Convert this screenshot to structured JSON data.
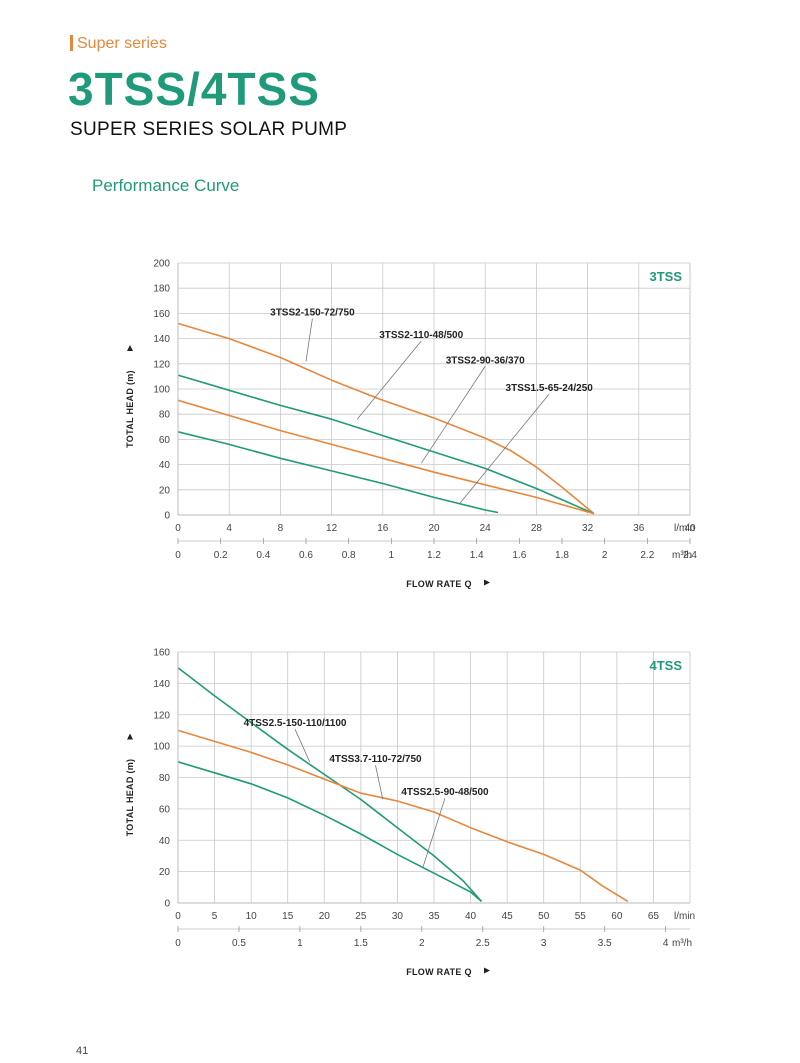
{
  "header": {
    "series_label": "Super series",
    "model_title": "3TSS/4TSS",
    "subtitle": "SUPER SERIES SOLAR PUMP",
    "section_title": "Performance Curve"
  },
  "page_number": "41",
  "colors": {
    "green": "#1f9a7a",
    "orange": "#e8873a",
    "grid": "#c8c8c8"
  },
  "chart_data": [
    {
      "type": "line",
      "tag": "3TSS",
      "ylabel": "TOTAL HEAD (m)",
      "xlabel": "FLOW RATE Q",
      "x_unit": "l/min",
      "x2_unit": "m³/h",
      "xlim": [
        0,
        40
      ],
      "ylim": [
        0,
        200
      ],
      "x_ticks": [
        "0",
        "4",
        "8",
        "12",
        "16",
        "20",
        "24",
        "28",
        "32",
        "36",
        "40"
      ],
      "x2_ticks": [
        "0",
        "0.2",
        "0.4",
        "0.6",
        "0.8",
        "1",
        "1.2",
        "1.4",
        "1.6",
        "1.8",
        "2",
        "2.2",
        "2.4"
      ],
      "y_ticks": [
        "0",
        "20",
        "40",
        "60",
        "80",
        "100",
        "120",
        "140",
        "160",
        "180",
        "200"
      ],
      "grid": true,
      "series": [
        {
          "name": "3TSS2-150-72/750",
          "color": "orange",
          "x": [
            0,
            4,
            8,
            12,
            16,
            20,
            24,
            26,
            28,
            30,
            32.5
          ],
          "y": [
            152,
            140,
            125,
            107,
            91,
            77,
            61,
            51,
            38,
            22,
            1
          ]
        },
        {
          "name": "3TSS2-110-48/500",
          "color": "green",
          "x": [
            0,
            4,
            8,
            12,
            16,
            20,
            24,
            28,
            32.5
          ],
          "y": [
            111,
            99,
            87,
            76,
            63,
            50,
            37,
            21,
            1
          ]
        },
        {
          "name": "3TSS2-90-36/370",
          "color": "orange",
          "x": [
            0,
            4,
            8,
            12,
            16,
            20,
            24,
            28,
            32.5
          ],
          "y": [
            91,
            79,
            67,
            56,
            45,
            34,
            24,
            14,
            1
          ]
        },
        {
          "name": "3TSS1.5-65-24/250",
          "color": "green",
          "x": [
            0,
            4,
            8,
            12,
            16,
            20,
            24,
            25
          ],
          "y": [
            66,
            56,
            45,
            35,
            25,
            14,
            4,
            2
          ]
        }
      ],
      "labels": [
        {
          "text": "3TSS2-150-72/750",
          "x": 10.5,
          "y": 160,
          "tx": 10,
          "ty": 122
        },
        {
          "text": "3TSS2-110-48/500",
          "x": 19,
          "y": 142,
          "tx": 14,
          "ty": 76
        },
        {
          "text": "3TSS2-90-36/370",
          "x": 24,
          "y": 122,
          "tx": 19,
          "ty": 41
        },
        {
          "text": "3TSS1.5-65-24/250",
          "x": 29,
          "y": 100,
          "tx": 22,
          "ty": 9
        }
      ]
    },
    {
      "type": "line",
      "tag": "4TSS",
      "ylabel": "TOTAL HEAD (m)",
      "xlabel": "FLOW RATE Q",
      "x_unit": "l/min",
      "x2_unit": "m³/h",
      "xlim": [
        0,
        70
      ],
      "ylim": [
        0,
        160
      ],
      "x_ticks": [
        "0",
        "5",
        "10",
        "15",
        "20",
        "25",
        "30",
        "35",
        "40",
        "45",
        "50",
        "55",
        "60",
        "65"
      ],
      "x2_ticks": [
        "0",
        "0.5",
        "1",
        "1.5",
        "2",
        "2.5",
        "3",
        "3.5",
        "4"
      ],
      "y_ticks": [
        "0",
        "20",
        "40",
        "60",
        "80",
        "100",
        "120",
        "140",
        "160"
      ],
      "grid": true,
      "series": [
        {
          "name": "4TSS2.5-150-110/1100",
          "color": "green",
          "x": [
            0,
            5,
            10,
            15,
            20,
            25,
            30,
            35,
            39,
            41.5
          ],
          "y": [
            150,
            132,
            115,
            98,
            82,
            66,
            48,
            30,
            14,
            1
          ]
        },
        {
          "name": "4TSS3.7-110-72/750",
          "color": "orange",
          "x": [
            0,
            5,
            10,
            15,
            20,
            25,
            30,
            35,
            40,
            45,
            50,
            55,
            58,
            61.5
          ],
          "y": [
            110,
            103,
            96,
            88,
            79,
            70,
            65,
            58,
            48,
            39,
            31,
            21,
            11,
            1
          ]
        },
        {
          "name": "4TSS2.5-90-48/500",
          "color": "green",
          "x": [
            0,
            5,
            10,
            15,
            20,
            25,
            30,
            35,
            40,
            41.5
          ],
          "y": [
            90,
            83,
            76,
            67,
            56,
            44,
            31,
            19,
            7,
            1
          ]
        }
      ],
      "labels": [
        {
          "text": "4TSS2.5-150-110/1100",
          "x": 16,
          "y": 114,
          "tx": 18,
          "ty": 90
        },
        {
          "text": "4TSS3.7-110-72/750",
          "x": 27,
          "y": 91,
          "tx": 28,
          "ty": 66
        },
        {
          "text": "4TSS2.5-90-48/500",
          "x": 36.5,
          "y": 70,
          "tx": 33.5,
          "ty": 23
        }
      ]
    }
  ]
}
